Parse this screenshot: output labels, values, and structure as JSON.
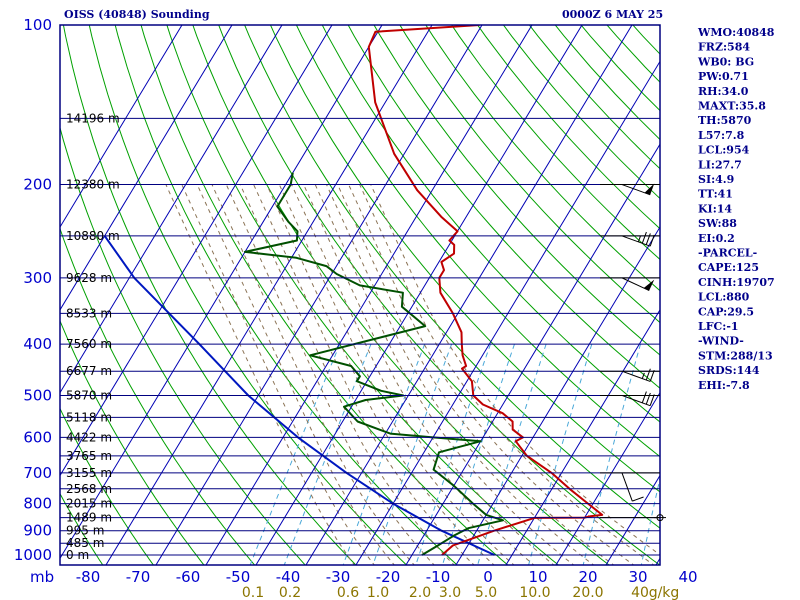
{
  "header": {
    "station_title": "OISS (40848) Sounding",
    "date_label": "0000Z  6 MAY 25"
  },
  "colors": {
    "frame": "#000080",
    "isotherm": "#0000b4",
    "dry_adiabat": "#00a000",
    "moist_adiabat": "#8b7355",
    "mixing_ratio": "#4aa8d8",
    "temperature": "#c00000",
    "dewpoint": "#005000",
    "parcel": "#0018c0",
    "labels": "#0000cc"
  },
  "indices": [
    "WMO:40848",
    "FRZ:584",
    "WB0: BG",
    "PW:0.71",
    "RH:34.0",
    "MAXT:35.8",
    "TH:5870",
    "L57:7.8",
    "LCL:954",
    "LI:27.7",
    "SI:4.9",
    "TT:41",
    "KI:14",
    "SW:88",
    "EI:0.2",
    "-PARCEL-",
    "CAPE:125",
    "CINH:19707",
    "LCL:880",
    "CAP:29.5",
    "LFC:-1",
    "-WIND-",
    "STM:288/13",
    "SRDS:144",
    "EHI:-7.8"
  ],
  "chart_data": {
    "type": "skew-t",
    "x_unit_label": "mb",
    "pressure_levels": [
      100,
      200,
      300,
      400,
      500,
      600,
      700,
      800,
      900,
      1000
    ],
    "temperature_ticks": [
      -80,
      -70,
      -60,
      -50,
      -40,
      -30,
      -20,
      -10,
      0,
      10,
      20,
      30,
      40
    ],
    "temperature_tick_labels": [
      "-80",
      "-70",
      "-60",
      "-50",
      "-40",
      "-30",
      "-20",
      "-10",
      "0",
      "10",
      "20",
      "30",
      "40"
    ],
    "height_labels": [
      {
        "p": 150,
        "label": "14196 m"
      },
      {
        "p": 200,
        "label": "12380 m"
      },
      {
        "p": 250,
        "label": "10880 m"
      },
      {
        "p": 300,
        "label": "9628 m"
      },
      {
        "p": 350,
        "label": "8533 m"
      },
      {
        "p": 400,
        "label": "7560 m"
      },
      {
        "p": 450,
        "label": "6677 m"
      },
      {
        "p": 500,
        "label": "5870 m"
      },
      {
        "p": 550,
        "label": "5118 m"
      },
      {
        "p": 600,
        "label": "4422 m"
      },
      {
        "p": 650,
        "label": "3765 m"
      },
      {
        "p": 700,
        "label": "3155 m"
      },
      {
        "p": 750,
        "label": "2568 m"
      },
      {
        "p": 800,
        "label": "2015 m"
      },
      {
        "p": 850,
        "label": "1489 m"
      },
      {
        "p": 900,
        "label": "995 m"
      },
      {
        "p": 950,
        "label": "485 m"
      },
      {
        "p": 1000,
        "label": "0 m"
      }
    ],
    "mixing_ratio_labels": [
      "0.1",
      "0.2",
      "0.6",
      "1.0",
      "2.0",
      "3.0",
      "5.0",
      "10.0",
      "20.0",
      "40",
      "g/kg"
    ],
    "temperature_profile": [
      {
        "p": 100,
        "t": -60.5
      },
      {
        "p": 103,
        "t": -80.5
      },
      {
        "p": 110,
        "t": -80
      },
      {
        "p": 140,
        "t": -72
      },
      {
        "p": 175,
        "t": -62
      },
      {
        "p": 205,
        "t": -53
      },
      {
        "p": 230,
        "t": -45
      },
      {
        "p": 245,
        "t": -40
      },
      {
        "p": 255,
        "t": -40.5
      },
      {
        "p": 260,
        "t": -39
      },
      {
        "p": 270,
        "t": -38
      },
      {
        "p": 280,
        "t": -39.5
      },
      {
        "p": 290,
        "t": -38
      },
      {
        "p": 300,
        "t": -38
      },
      {
        "p": 320,
        "t": -36
      },
      {
        "p": 350,
        "t": -31
      },
      {
        "p": 380,
        "t": -27
      },
      {
        "p": 400,
        "t": -25.5
      },
      {
        "p": 420,
        "t": -24
      },
      {
        "p": 440,
        "t": -22
      },
      {
        "p": 445,
        "t": -22.5
      },
      {
        "p": 470,
        "t": -19
      },
      {
        "p": 500,
        "t": -17
      },
      {
        "p": 520,
        "t": -14
      },
      {
        "p": 540,
        "t": -9
      },
      {
        "p": 560,
        "t": -6
      },
      {
        "p": 580,
        "t": -5
      },
      {
        "p": 600,
        "t": -2
      },
      {
        "p": 610,
        "t": -3
      },
      {
        "p": 650,
        "t": 1
      },
      {
        "p": 700,
        "t": 8
      },
      {
        "p": 750,
        "t": 13.5
      },
      {
        "p": 800,
        "t": 19
      },
      {
        "p": 840,
        "t": 23.2
      },
      {
        "p": 845,
        "t": 21
      },
      {
        "p": 850,
        "t": 20
      },
      {
        "p": 851,
        "t": 10
      },
      {
        "p": 900,
        "t": 3.5
      },
      {
        "p": 960,
        "t": -3
      },
      {
        "p": 1000,
        "t": -4
      }
    ],
    "dewpoint_profile": [
      {
        "p": 190,
        "t": -80
      },
      {
        "p": 200,
        "t": -79
      },
      {
        "p": 220,
        "t": -79
      },
      {
        "p": 235,
        "t": -75
      },
      {
        "p": 245,
        "t": -72
      },
      {
        "p": 255,
        "t": -71
      },
      {
        "p": 268,
        "t": -80
      },
      {
        "p": 275,
        "t": -69
      },
      {
        "p": 285,
        "t": -62
      },
      {
        "p": 295,
        "t": -59
      },
      {
        "p": 310,
        "t": -53
      },
      {
        "p": 320,
        "t": -43.5
      },
      {
        "p": 340,
        "t": -42
      },
      {
        "p": 370,
        "t": -35
      },
      {
        "p": 420,
        "t": -54.5
      },
      {
        "p": 440,
        "t": -45
      },
      {
        "p": 460,
        "t": -42
      },
      {
        "p": 470,
        "t": -42
      },
      {
        "p": 490,
        "t": -36
      },
      {
        "p": 500,
        "t": -31
      },
      {
        "p": 510,
        "t": -38
      },
      {
        "p": 525,
        "t": -41.5
      },
      {
        "p": 560,
        "t": -37
      },
      {
        "p": 590,
        "t": -29
      },
      {
        "p": 600,
        "t": -20
      },
      {
        "p": 610,
        "t": -10
      },
      {
        "p": 640,
        "t": -17
      },
      {
        "p": 690,
        "t": -16
      },
      {
        "p": 740,
        "t": -10
      },
      {
        "p": 800,
        "t": -4
      },
      {
        "p": 840,
        "t": 0
      },
      {
        "p": 860,
        "t": 4
      },
      {
        "p": 890,
        "t": -2
      },
      {
        "p": 920,
        "t": -4
      },
      {
        "p": 960,
        "t": -6
      },
      {
        "p": 1000,
        "t": -8
      }
    ],
    "parcel_profile": [
      {
        "p": 1000,
        "t": 6.5
      },
      {
        "p": 900,
        "t": -7
      },
      {
        "p": 800,
        "t": -20
      },
      {
        "p": 700,
        "t": -33
      },
      {
        "p": 600,
        "t": -47
      },
      {
        "p": 500,
        "t": -62
      },
      {
        "p": 400,
        "t": -78
      },
      {
        "p": 300,
        "t": -99
      },
      {
        "p": 250,
        "t": -110
      }
    ],
    "wind_barbs": [
      {
        "p": 200,
        "dir": 290,
        "kt": 50
      },
      {
        "p": 250,
        "dir": 290,
        "kt": 35
      },
      {
        "p": 300,
        "dir": 295,
        "kt": 50
      },
      {
        "p": 450,
        "dir": 290,
        "kt": 25
      },
      {
        "p": 500,
        "dir": 290,
        "kt": 30
      },
      {
        "p": 700,
        "dir": 340,
        "kt": 10
      },
      {
        "p": 850,
        "dir": 0,
        "kt": 0
      }
    ],
    "x_range_celsius": [
      -80,
      40
    ],
    "y_range_mb": [
      100,
      1000
    ]
  }
}
